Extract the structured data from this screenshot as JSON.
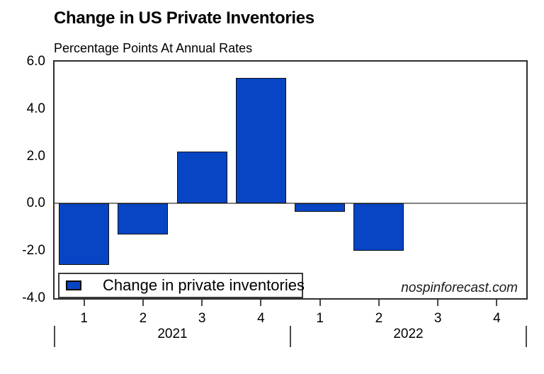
{
  "title": "Change in US Private Inventories",
  "subtitle": "Percentage Points At Annual Rates",
  "watermark": "nospinforecast.com",
  "colors": {
    "bar": "#0845C4",
    "bar_border": "#101010",
    "zero_line": "#808080",
    "plot_border": "#2e2e2e",
    "tick": "#4a4a4a",
    "text": "#000000"
  },
  "chart_data": {
    "type": "bar",
    "categories": [
      "1",
      "2",
      "3",
      "4",
      "1",
      "2",
      "3",
      "4"
    ],
    "year_groups": [
      {
        "label": "2021",
        "from": 0,
        "to": 3
      },
      {
        "label": "2022",
        "from": 4,
        "to": 7
      }
    ],
    "series": [
      {
        "name": "Change in private inventories",
        "values": [
          -2.6,
          -1.3,
          2.2,
          5.3,
          -0.35,
          -2.0,
          null,
          null
        ]
      }
    ],
    "ylim": [
      -4.0,
      6.0
    ],
    "yticks": [
      6.0,
      4.0,
      2.0,
      0.0,
      -2.0,
      -4.0
    ],
    "ytick_decimals": 1,
    "grid": false,
    "legend": {
      "label": "Change in private inventories",
      "position": "bottom-left-inside"
    }
  }
}
